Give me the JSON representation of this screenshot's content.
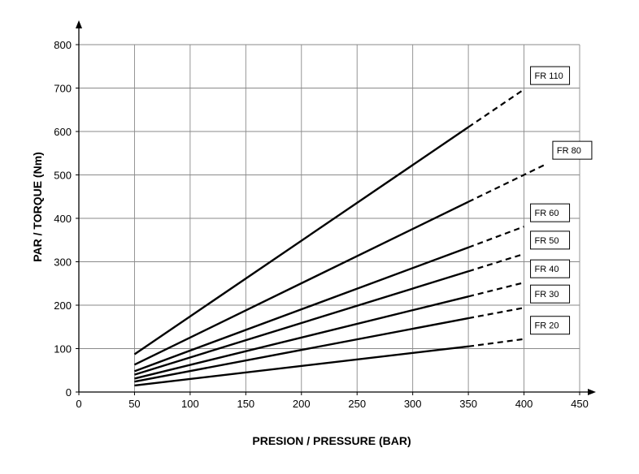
{
  "chart_data": {
    "type": "line",
    "xlabel": "PRESION / PRESSURE (BAR)",
    "ylabel": "PAR / TORQUE (Nm)",
    "xlim": [
      0,
      450
    ],
    "ylim": [
      0,
      800
    ],
    "x_ticks": [
      0,
      50,
      100,
      150,
      200,
      250,
      300,
      350,
      400,
      450
    ],
    "y_ticks": [
      0,
      100,
      200,
      300,
      400,
      500,
      600,
      700,
      800
    ],
    "grid": true,
    "solid_range": [
      50,
      350
    ],
    "series": [
      {
        "name": "FR 110",
        "x": [
          50,
          350,
          400
        ],
        "y": [
          87,
          610,
          697
        ]
      },
      {
        "name": "FR 80",
        "x": [
          50,
          350,
          420
        ],
        "y": [
          63,
          438,
          525
        ]
      },
      {
        "name": "FR 60",
        "x": [
          50,
          350,
          400
        ],
        "y": [
          48,
          333,
          381
        ]
      },
      {
        "name": "FR 50",
        "x": [
          50,
          350,
          400
        ],
        "y": [
          40,
          278,
          318
        ]
      },
      {
        "name": "FR 40",
        "x": [
          50,
          350,
          400
        ],
        "y": [
          31,
          220,
          252
        ]
      },
      {
        "name": "FR 30",
        "x": [
          50,
          350,
          400
        ],
        "y": [
          24,
          170,
          194
        ]
      },
      {
        "name": "FR 20",
        "x": [
          50,
          350,
          400
        ],
        "y": [
          15,
          105,
          122
        ]
      }
    ]
  }
}
